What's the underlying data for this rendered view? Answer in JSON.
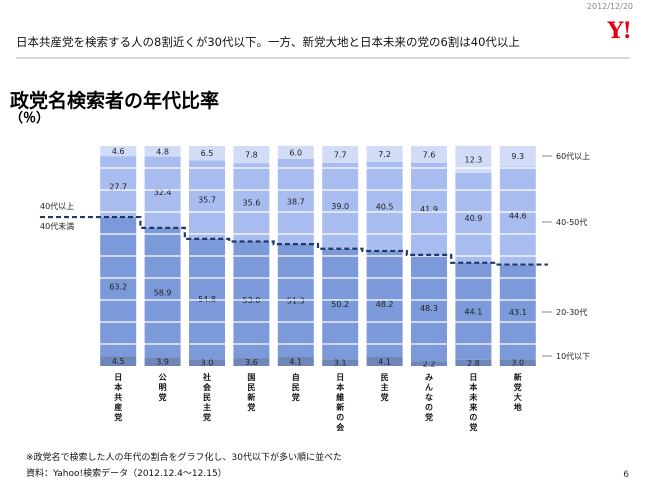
{
  "header": {
    "date": "2012/12/20",
    "logo": "Y!",
    "headline": "日本共産党を検索する人の8割近くが30代以下。一方、新党大地と日本未来の党の6割は40代以上"
  },
  "title": "政党名検索者の年代比率",
  "subtitle": "（％）",
  "footnote": "※政党名で検索した人の年代の割合をグラフ化し、30代以下が多い順に並べた",
  "source": "資料：Yahoo!検索データ（2012.12.4～12.15）",
  "page_number": "6",
  "colors": {
    "teens": "#6f87b8",
    "twenties_thirties": "#7c9ad9",
    "forties_fifties": "#a9bcf0",
    "sixties_plus": "#d2dcf7",
    "line": "#1f3a68",
    "grid": "#ffffff"
  },
  "chart_data": {
    "type": "bar",
    "stacked": true,
    "categories": [
      "日本共産党",
      "公明党",
      "社会民主党",
      "国民新党",
      "自民党",
      "日本維新の会",
      "民主党",
      "みんなの党",
      "日本未来の党",
      "新党大地"
    ],
    "series": [
      {
        "name": "10代以下",
        "values": [
          4.5,
          3.9,
          3.0,
          3.6,
          4.1,
          3.1,
          4.1,
          2.2,
          2.8,
          3.0
        ]
      },
      {
        "name": "20-30代",
        "values": [
          63.2,
          58.9,
          54.8,
          53.0,
          51.3,
          50.2,
          48.2,
          48.3,
          44.1,
          43.1
        ]
      },
      {
        "name": "40-50代",
        "values": [
          27.7,
          32.4,
          35.7,
          35.6,
          38.7,
          39.0,
          40.5,
          41.9,
          40.9,
          44.6
        ]
      },
      {
        "name": "60代以上",
        "values": [
          4.6,
          4.8,
          6.5,
          7.8,
          6.0,
          7.7,
          7.2,
          7.6,
          12.3,
          9.3
        ]
      }
    ],
    "ylim": [
      0,
      100
    ],
    "line_labels": {
      "above": "40代以上",
      "below": "40代未満"
    },
    "legend_position": "right"
  }
}
